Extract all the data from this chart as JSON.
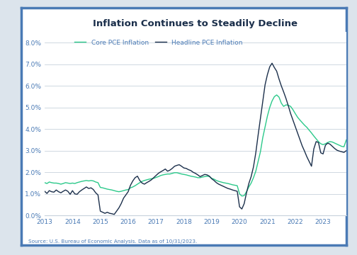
{
  "title": "Inflation Continues to Steadily Decline",
  "source_text": "Source: U.S. Bureau of Economic Analysis. Data as of 10/31/2023.",
  "legend_core": "Core PCE Inflation",
  "legend_headline": "Headline PCE Inflation",
  "core_color": "#2bc98a",
  "headline_color": "#1b2f4b",
  "background_outer": "#dce4ec",
  "background_card": "#ffffff",
  "border_color": "#4a7ab5",
  "ylim": [
    0.0,
    0.085
  ],
  "yticks": [
    0.0,
    0.01,
    0.02,
    0.03,
    0.04,
    0.05,
    0.06,
    0.07,
    0.08
  ],
  "ytick_labels": [
    "0.0%",
    "1.0%",
    "2.0%",
    "3.0%",
    "4.0%",
    "5.0%",
    "6.0%",
    "7.0%",
    "8.0%"
  ],
  "title_color": "#1b2f4b",
  "tick_color": "#4a7ab5",
  "source_color": "#4a7ab5",
  "grid_color": "#c8d2dc",
  "xtick_years": [
    2013,
    2014,
    2015,
    2016,
    2017,
    2018,
    2019,
    2020,
    2021,
    2022,
    2023
  ],
  "start_year": 2013,
  "n_months": 131,
  "core_data": [
    1.52,
    1.48,
    1.55,
    1.52,
    1.5,
    1.5,
    1.48,
    1.45,
    1.48,
    1.52,
    1.5,
    1.48,
    1.5,
    1.48,
    1.52,
    1.55,
    1.58,
    1.6,
    1.62,
    1.6,
    1.62,
    1.6,
    1.55,
    1.52,
    1.3,
    1.28,
    1.25,
    1.22,
    1.2,
    1.18,
    1.15,
    1.12,
    1.1,
    1.12,
    1.15,
    1.18,
    1.2,
    1.28,
    1.32,
    1.38,
    1.45,
    1.52,
    1.58,
    1.62,
    1.65,
    1.68,
    1.7,
    1.72,
    1.76,
    1.8,
    1.85,
    1.88,
    1.9,
    1.92,
    1.92,
    1.95,
    1.98,
    1.98,
    1.95,
    1.92,
    1.9,
    1.88,
    1.85,
    1.82,
    1.8,
    1.78,
    1.75,
    1.75,
    1.78,
    1.8,
    1.82,
    1.8,
    1.72,
    1.68,
    1.62,
    1.58,
    1.55,
    1.52,
    1.5,
    1.48,
    1.45,
    1.42,
    1.4,
    1.38,
    1.0,
    0.9,
    0.92,
    1.1,
    1.32,
    1.5,
    1.75,
    2.05,
    2.5,
    2.95,
    3.6,
    4.1,
    4.6,
    5.0,
    5.3,
    5.5,
    5.58,
    5.48,
    5.2,
    5.05,
    5.12,
    5.1,
    5.05,
    4.9,
    4.72,
    4.55,
    4.42,
    4.3,
    4.18,
    4.08,
    3.95,
    3.82,
    3.68,
    3.55,
    3.42,
    3.32,
    3.28,
    3.32,
    3.38,
    3.42,
    3.4,
    3.35,
    3.3,
    3.25,
    3.2,
    3.18,
    3.5
  ],
  "headline_data": [
    1.12,
    1.02,
    1.15,
    1.1,
    1.08,
    1.18,
    1.1,
    1.05,
    1.12,
    1.18,
    1.12,
    0.98,
    1.15,
    1.0,
    0.98,
    1.1,
    1.18,
    1.25,
    1.32,
    1.25,
    1.28,
    1.2,
    1.05,
    0.95,
    0.2,
    0.15,
    0.1,
    0.15,
    0.1,
    0.08,
    0.05,
    0.2,
    0.35,
    0.55,
    0.8,
    0.95,
    1.1,
    1.4,
    1.6,
    1.75,
    1.82,
    1.62,
    1.5,
    1.45,
    1.52,
    1.58,
    1.65,
    1.75,
    1.85,
    1.95,
    2.02,
    2.08,
    2.15,
    2.05,
    2.1,
    2.18,
    2.28,
    2.32,
    2.35,
    2.28,
    2.2,
    2.18,
    2.12,
    2.08,
    2.0,
    1.95,
    1.88,
    1.8,
    1.85,
    1.9,
    1.88,
    1.82,
    1.7,
    1.62,
    1.52,
    1.45,
    1.4,
    1.35,
    1.3,
    1.25,
    1.22,
    1.18,
    1.15,
    1.12,
    0.4,
    0.3,
    0.55,
    1.05,
    1.48,
    1.8,
    2.25,
    2.9,
    3.72,
    4.5,
    5.28,
    6.05,
    6.52,
    6.88,
    7.05,
    6.85,
    6.68,
    6.32,
    6.0,
    5.72,
    5.42,
    5.08,
    4.72,
    4.42,
    4.12,
    3.82,
    3.52,
    3.22,
    2.98,
    2.72,
    2.5,
    2.28,
    3.08,
    3.42,
    3.38,
    2.9,
    2.85,
    3.25,
    3.35,
    3.3,
    3.2,
    3.1,
    3.02,
    2.98,
    2.95,
    2.92,
    3.0
  ]
}
